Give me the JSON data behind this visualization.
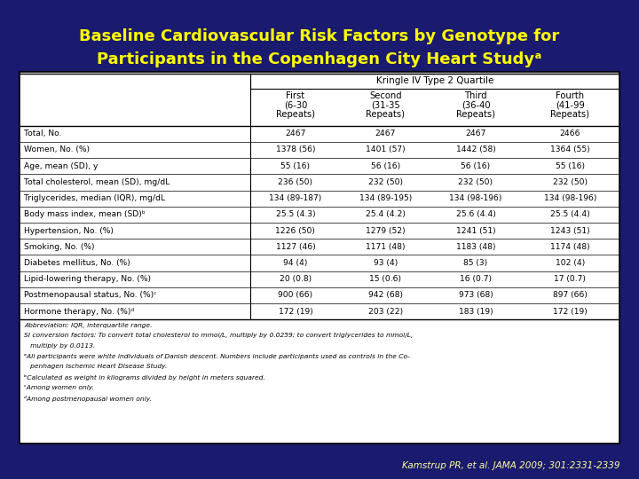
{
  "title_line1": "Baseline Cardiovascular Risk Factors by Genotype for",
  "title_line2": "Participants in the Copenhagen City Heart Studyᵃ",
  "title_color": "#FFFF00",
  "bg_color": "#1a1a6e",
  "table_bg": "#FFFFFF",
  "citation": "Kamstrup PR, et al. JAMA 2009; 301:2331-2339",
  "col_header_line1": [
    "",
    "First",
    "Second",
    "Third",
    "Fourth"
  ],
  "col_header_line2": [
    "",
    "(6-30",
    "(31-35",
    "(36-40",
    "(41-99"
  ],
  "col_header_line3": [
    "",
    "Repeats)",
    "Repeats)",
    "Repeats)",
    "Repeats)"
  ],
  "col_header_group": "Kringle IV Type 2 Quartile",
  "rows": [
    [
      "Total, No.",
      "2467",
      "2467",
      "2467",
      "2466"
    ],
    [
      "Women, No. (%)",
      "1378 (56)",
      "1401 (57)",
      "1442 (58)",
      "1364 (55)"
    ],
    [
      "Age, mean (SD), y",
      "55 (16)",
      "56 (16)",
      "56 (16)",
      "55 (16)"
    ],
    [
      "Total cholesterol, mean (SD), mg/dL",
      "236 (50)",
      "232 (50)",
      "232 (50)",
      "232 (50)"
    ],
    [
      "Triglycerides, median (IQR), mg/dL",
      "134 (89-187)",
      "134 (89-195)",
      "134 (98-196)",
      "134 (98-196)"
    ],
    [
      "Body mass index, mean (SD)ᵇ",
      "25.5 (4.3)",
      "25.4 (4.2)",
      "25.6 (4.4)",
      "25.5 (4.4)"
    ],
    [
      "Hypertension, No. (%)",
      "1226 (50)",
      "1279 (52)",
      "1241 (51)",
      "1243 (51)"
    ],
    [
      "Smoking, No. (%)",
      "1127 (46)",
      "1171 (48)",
      "1183 (48)",
      "1174 (48)"
    ],
    [
      "Diabetes mellitus, No. (%)",
      "94 (4)",
      "93 (4)",
      "85 (3)",
      "102 (4)"
    ],
    [
      "Lipid-lowering therapy, No. (%)",
      "20 (0.8)",
      "15 (0.6)",
      "16 (0.7)",
      "17 (0.7)"
    ],
    [
      "Postmenopausal status, No. (%)ᶜ",
      "900 (66)",
      "942 (68)",
      "973 (68)",
      "897 (66)"
    ],
    [
      "Hormone therapy, No. (%)ᵈ",
      "172 (19)",
      "203 (22)",
      "183 (19)",
      "172 (19)"
    ]
  ],
  "footnotes": [
    "Abbreviation: IQR, interquartile range.",
    "SI conversion factors: To convert total cholesterol to mmol/L, multiply by 0.0259; to convert triglycerides to mmol/L,",
    "   multiply by 0.0113.",
    "ᵃAll participants were white individuals of Danish descent. Numbers include participants used as controls in the Co-",
    "   penhagen Ischemic Heart Disease Study.",
    "ᵇCalculated as weight in kilograms divided by height in meters squared.",
    "ᶜAmong women only.",
    "ᵈAmong postmenopausal women only."
  ]
}
